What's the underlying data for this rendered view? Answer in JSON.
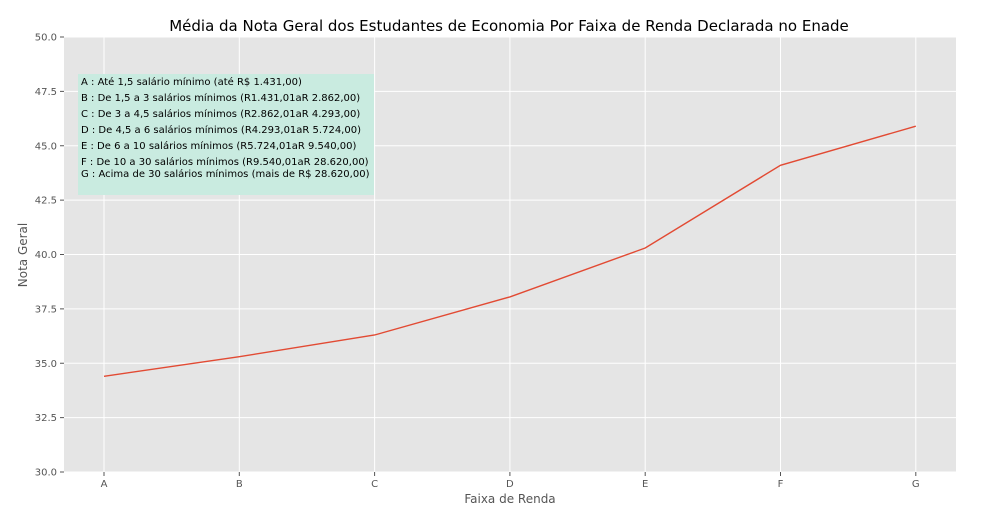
{
  "chart_data": {
    "type": "line",
    "title": "Média da Nota Geral dos Estudantes de Economia Por Faixa de Renda Declarada no Enade",
    "xlabel": "Faixa de Renda",
    "ylabel": "Nota Geral",
    "categories": [
      "A",
      "B",
      "C",
      "D",
      "E",
      "F",
      "G"
    ],
    "values": [
      34.4,
      35.3,
      36.3,
      38.05,
      40.3,
      44.1,
      45.9
    ],
    "ylim": [
      30.0,
      50.0
    ],
    "yticks": [
      "30.0",
      "32.5",
      "35.0",
      "37.5",
      "40.0",
      "42.5",
      "45.0",
      "47.5",
      "50.0"
    ],
    "grid": true,
    "line_color": "#e24a33",
    "background_color": "#e5e5e5",
    "annotation_box_color": "#c9ebe0",
    "annotation_lines": [
      "A : Até 1,5 salário mínimo (até R$ 1.431,00)",
      "B : De 1,5 a 3 salários mínimos (R1.431,01aR 2.862,00)",
      "C : De 3 a 4,5 salários mínimos (R2.862,01aR 4.293,00)",
      "D : De 4,5 a 6 salários mínimos (R4.293,01aR 5.724,00)",
      "E : De 6 a 10 salários mínimos (R5.724,01aR 9.540,00)",
      "F : De 10 a 30 salários mínimos (R9.540,01aR 28.620,00)",
      "G : Acima de 30 salários mínimos (mais de R$ 28.620,00)"
    ]
  }
}
